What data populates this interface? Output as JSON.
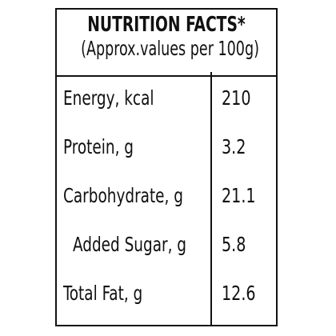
{
  "header": {
    "title": "NUTRITION FACTS*",
    "subtitle": "(Approx.values per 100g)"
  },
  "table": {
    "rows": [
      [
        "Energy, kcal",
        "210"
      ],
      [
        "Protein, g",
        "3.2"
      ],
      [
        "Carbohydrate, g",
        "21.1"
      ],
      [
        "Added Sugar, g",
        "5.8"
      ],
      [
        "Total Fat, g",
        "12.6"
      ]
    ]
  }
}
